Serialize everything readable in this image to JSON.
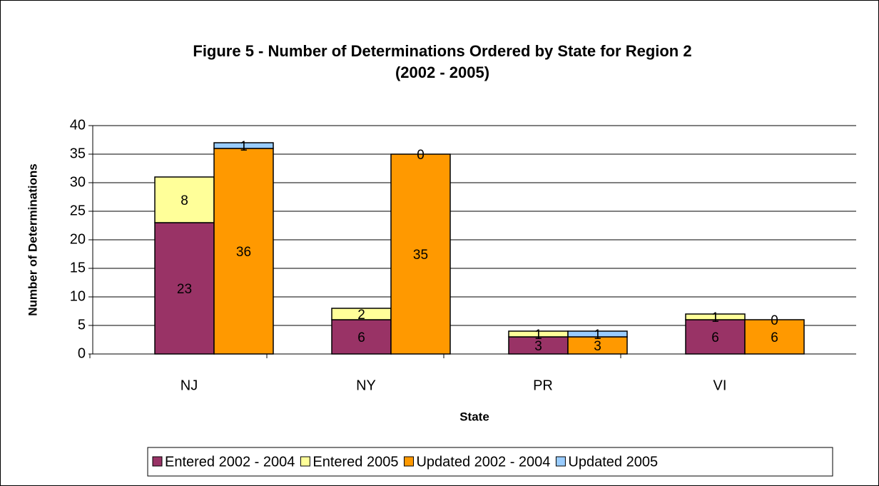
{
  "chart_data": {
    "type": "stacked-bar",
    "title": [
      "Figure 5 - Number of Determinations Ordered by State for Region 2",
      "(2002 - 2005)"
    ],
    "x_label": "State",
    "y_label": "Number of Determinations",
    "categories": [
      "NJ",
      "NY",
      "PR",
      "VI"
    ],
    "series": [
      {
        "name": "Entered 2002 - 2004",
        "color": "#993366",
        "stack": 0,
        "values": [
          23,
          6,
          3,
          6
        ]
      },
      {
        "name": "Entered 2005",
        "color": "#ffff99",
        "stack": 0,
        "values": [
          8,
          2,
          1,
          1
        ]
      },
      {
        "name": "Updated 2002 - 2004",
        "color": "#ff9900",
        "stack": 1,
        "values": [
          36,
          35,
          3,
          6
        ]
      },
      {
        "name": "Updated 2005",
        "color": "#99ccff",
        "stack": 1,
        "values": [
          1,
          0,
          1,
          0
        ]
      }
    ],
    "ylim": [
      0,
      40
    ],
    "yticks": [
      0,
      5,
      10,
      15,
      20,
      25,
      30,
      35,
      40
    ],
    "grid": true,
    "legend": "bottom"
  }
}
